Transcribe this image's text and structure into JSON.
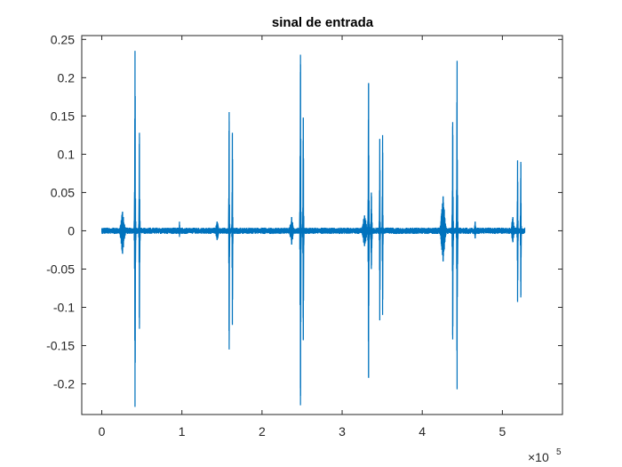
{
  "figure": {
    "title": "sinal de entrada",
    "x_multiplier": "×10",
    "x_multiplier_exp": "5"
  },
  "colors": {
    "line": "#0072BD",
    "axes": "#262626",
    "background": "#ffffff"
  },
  "chart_data": {
    "type": "line",
    "title": "sinal de entrada",
    "xlabel": "",
    "ylabel": "",
    "grid": false,
    "legend": "none",
    "xlim": [
      -25000,
      575000
    ],
    "ylim": [
      -0.24,
      0.255
    ],
    "x_scale_note": "×10^5",
    "x_ticks": [
      0,
      100000,
      200000,
      300000,
      400000,
      500000
    ],
    "x_tick_labels": [
      "0",
      "1",
      "2",
      "3",
      "4",
      "5"
    ],
    "y_ticks": [
      0.25,
      0.2,
      0.15,
      0.1,
      0.05,
      0,
      -0.05,
      -0.1,
      -0.15,
      -0.2
    ],
    "y_tick_labels": [
      "0.25",
      "0.2",
      "0.15",
      "0.1",
      "0.05",
      "0",
      "-0.05",
      "-0.1",
      "-0.15",
      "-0.2"
    ],
    "signal_extent": [
      0,
      528000
    ],
    "baseline_noise": 0.003,
    "bursts": [
      {
        "x": 26000,
        "width": 6000,
        "amp": 0.025,
        "neg": -0.03
      },
      {
        "x": 41500,
        "width": 1500,
        "amp": 0.235,
        "neg": -0.23
      },
      {
        "x": 47000,
        "width": 1500,
        "amp": 0.128,
        "neg": -0.128
      },
      {
        "x": 97000,
        "width": 1000,
        "amp": 0.012,
        "neg": -0.008
      },
      {
        "x": 144000,
        "width": 5000,
        "amp": 0.012,
        "neg": -0.012
      },
      {
        "x": 159000,
        "width": 1200,
        "amp": 0.155,
        "neg": -0.155
      },
      {
        "x": 163000,
        "width": 1200,
        "amp": 0.128,
        "neg": -0.123
      },
      {
        "x": 237000,
        "width": 5000,
        "amp": 0.018,
        "neg": -0.018
      },
      {
        "x": 248000,
        "width": 1500,
        "amp": 0.23,
        "neg": -0.228
      },
      {
        "x": 251500,
        "width": 1500,
        "amp": 0.148,
        "neg": -0.143
      },
      {
        "x": 328000,
        "width": 6000,
        "amp": 0.02,
        "neg": -0.02
      },
      {
        "x": 333000,
        "width": 1500,
        "amp": 0.193,
        "neg": -0.192
      },
      {
        "x": 336500,
        "width": 2000,
        "amp": 0.05,
        "neg": -0.05
      },
      {
        "x": 347000,
        "width": 1200,
        "amp": 0.12,
        "neg": -0.117
      },
      {
        "x": 350500,
        "width": 1200,
        "amp": 0.125,
        "neg": -0.11
      },
      {
        "x": 426000,
        "width": 6000,
        "amp": 0.045,
        "neg": -0.04
      },
      {
        "x": 438000,
        "width": 1500,
        "amp": 0.142,
        "neg": -0.142
      },
      {
        "x": 443500,
        "width": 1500,
        "amp": 0.222,
        "neg": -0.207
      },
      {
        "x": 466000,
        "width": 2500,
        "amp": 0.012,
        "neg": -0.01
      },
      {
        "x": 513000,
        "width": 4000,
        "amp": 0.018,
        "neg": -0.015
      },
      {
        "x": 519000,
        "width": 1200,
        "amp": 0.092,
        "neg": -0.093
      },
      {
        "x": 523000,
        "width": 1200,
        "amp": 0.09,
        "neg": -0.087
      }
    ]
  }
}
